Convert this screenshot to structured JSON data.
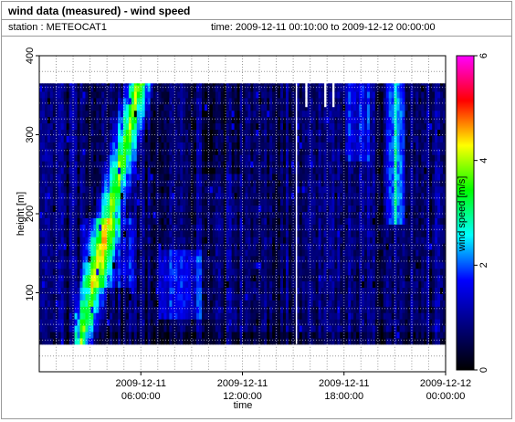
{
  "header": {
    "title": "wind data (measured) - wind speed",
    "station": "station : METEOCAT1",
    "time_range": "time: 2009-12-11 00:10:00 to 2009-12-12 00:00:00"
  },
  "chart_data": {
    "type": "heatmap",
    "title": "wind data (measured) - wind speed",
    "xlabel": "time",
    "ylabel": "height [m]",
    "colorbar_label": "wind speed [m/s]",
    "x_range_hours": [
      0,
      24
    ],
    "x_ticks": [
      {
        "hour": 6,
        "line1": "2009-12-11",
        "line2": "06:00:00"
      },
      {
        "hour": 12,
        "line1": "2009-12-11",
        "line2": "12:00:00"
      },
      {
        "hour": 18,
        "line1": "2009-12-11",
        "line2": "18:00:00"
      },
      {
        "hour": 24,
        "line1": "2009-12-12",
        "line2": "00:00:00"
      }
    ],
    "ylim": [
      0,
      400
    ],
    "y_ticks": [
      100,
      200,
      300,
      400
    ],
    "colorbar_range": [
      0,
      6
    ],
    "colorbar_ticks": [
      0,
      2,
      4,
      6
    ],
    "data_height_range": [
      35,
      365
    ],
    "grid": true,
    "colormap": [
      "#000000",
      "#00007f",
      "#0000ff",
      "#00ffff",
      "#00ff00",
      "#ffff00",
      "#ff0000",
      "#ff00ff"
    ]
  }
}
